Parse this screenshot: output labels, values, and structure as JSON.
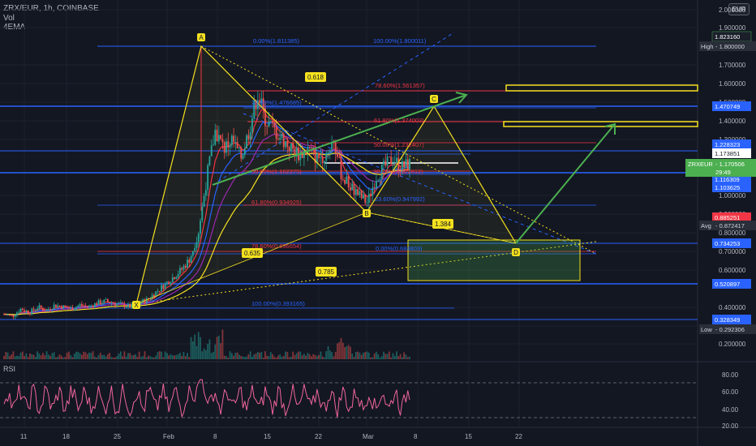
{
  "header": {
    "symbol_line": "ZRX/EUR, 1h, COINBASE",
    "vol_label": "Vol",
    "ema_label": "4EMA",
    "currency_button": "EUR"
  },
  "colors": {
    "background": "#131722",
    "candle_up": "#26a69a",
    "candle_down": "#ef5350",
    "fib_blue": "#2962ff",
    "fib_red": "#f23645",
    "pattern_yellow": "#f5e11f",
    "target_green": "#4caf50",
    "rsi_line": "#f0659b",
    "last_price": "#4caf50"
  },
  "chart_data": [
    {
      "type": "candlestick",
      "title": "ZRX/EUR, 1h, COINBASE",
      "x": [
        "11",
        "18",
        "25",
        "Feb",
        "8",
        "15",
        "22",
        "Mar",
        "8",
        "15",
        "22"
      ],
      "ylim": [
        0.1,
        2.1
      ],
      "y_scale": "log",
      "ticks": [
        "2.000000",
        "1.900000",
        "1.700000",
        "1.600000",
        "1.500000",
        "1.400000",
        "1.300000",
        "1.000000",
        "0.900000",
        "0.800000",
        "0.700000",
        "0.600000",
        "0.400000",
        "0.300000",
        "0.200000"
      ],
      "price_path": [
        [
          0,
          0.36
        ],
        [
          1,
          0.35
        ],
        [
          2,
          0.39
        ],
        [
          3,
          0.37
        ],
        [
          4,
          0.4
        ],
        [
          5,
          0.38
        ],
        [
          6,
          0.41
        ],
        [
          7,
          0.4
        ],
        [
          8,
          0.39
        ],
        [
          9,
          0.41
        ],
        [
          10,
          0.4
        ],
        [
          11,
          0.42
        ],
        [
          12,
          0.43
        ],
        [
          13,
          0.42
        ],
        [
          14,
          0.41
        ],
        [
          15,
          0.4
        ],
        [
          16,
          0.42
        ],
        [
          17,
          0.44
        ],
        [
          18,
          0.48
        ],
        [
          19,
          0.52
        ],
        [
          20,
          0.56
        ],
        [
          21,
          0.6
        ],
        [
          22,
          0.66
        ],
        [
          23,
          0.8
        ],
        [
          24,
          1.1
        ],
        [
          25,
          1.35
        ],
        [
          26,
          1.25
        ],
        [
          27,
          1.3
        ],
        [
          28,
          1.2
        ],
        [
          29,
          1.35
        ],
        [
          30,
          1.55
        ],
        [
          31,
          1.4
        ],
        [
          32,
          1.35
        ],
        [
          33,
          1.3
        ],
        [
          34,
          1.25
        ],
        [
          35,
          1.22
        ],
        [
          36,
          1.25
        ],
        [
          37,
          1.2
        ],
        [
          38,
          1.22
        ],
        [
          39,
          1.3
        ],
        [
          40,
          1.1
        ],
        [
          41,
          1.05
        ],
        [
          42,
          1.0
        ],
        [
          43,
          0.96
        ],
        [
          44,
          1.1
        ],
        [
          45,
          1.15
        ],
        [
          46,
          1.2
        ],
        [
          47,
          1.15
        ],
        [
          48,
          1.17
        ]
      ],
      "series": [
        {
          "name": "4EMA",
          "color": "#f5e11f"
        }
      ],
      "last_price": "1.170506",
      "symbol_label": "ZRXEUR",
      "countdown": "29:49",
      "price_labels": [
        {
          "value": "1.823160",
          "kind": "green"
        },
        {
          "value": "1.800000",
          "kind": "high",
          "prefix": "High"
        },
        {
          "value": "1.470749",
          "kind": "blue"
        },
        {
          "value": "1.228323",
          "kind": "blue"
        },
        {
          "value": "1.173851",
          "kind": "white"
        },
        {
          "value": "1.116309",
          "kind": "blue"
        },
        {
          "value": "1.103625",
          "kind": "blue"
        },
        {
          "value": "0.885251",
          "kind": "red"
        },
        {
          "value": "0.872417",
          "kind": "avg",
          "prefix": "Avg"
        },
        {
          "value": "0.734253",
          "kind": "blue"
        },
        {
          "value": "0.520897",
          "kind": "blue"
        },
        {
          "value": "0.328349",
          "kind": "blue"
        },
        {
          "value": "0.292306",
          "kind": "low",
          "prefix": "Low"
        }
      ],
      "fib_labels": [
        "0.00%(1.811385)",
        "100.00%(1.800011)",
        "78.60%(1.561357)",
        "23.60%(1.476685)",
        "61.80%(1.374003)",
        "50.00%(1.232407)",
        "50.00%(1.162275)",
        "38.20%(1.122812)",
        "61.80%(0.934925)",
        "23.60%(0.947992)",
        "78.60%(0.696654)",
        "0.00%(0.684803)",
        "100.00%(0.393165)"
      ],
      "pattern_points": [
        "X",
        "A",
        "B",
        "C",
        "D"
      ],
      "ratios": [
        "0.618",
        "1.384",
        "0.635",
        "0.785"
      ]
    },
    {
      "type": "line",
      "title": "RSI",
      "ylim": [
        20,
        80
      ],
      "ticks": [
        "80.00",
        "60.00",
        "40.00",
        "20.00"
      ],
      "bands": [
        70,
        30
      ],
      "series": [
        {
          "name": "RSI",
          "color": "#f0659b"
        }
      ]
    }
  ]
}
